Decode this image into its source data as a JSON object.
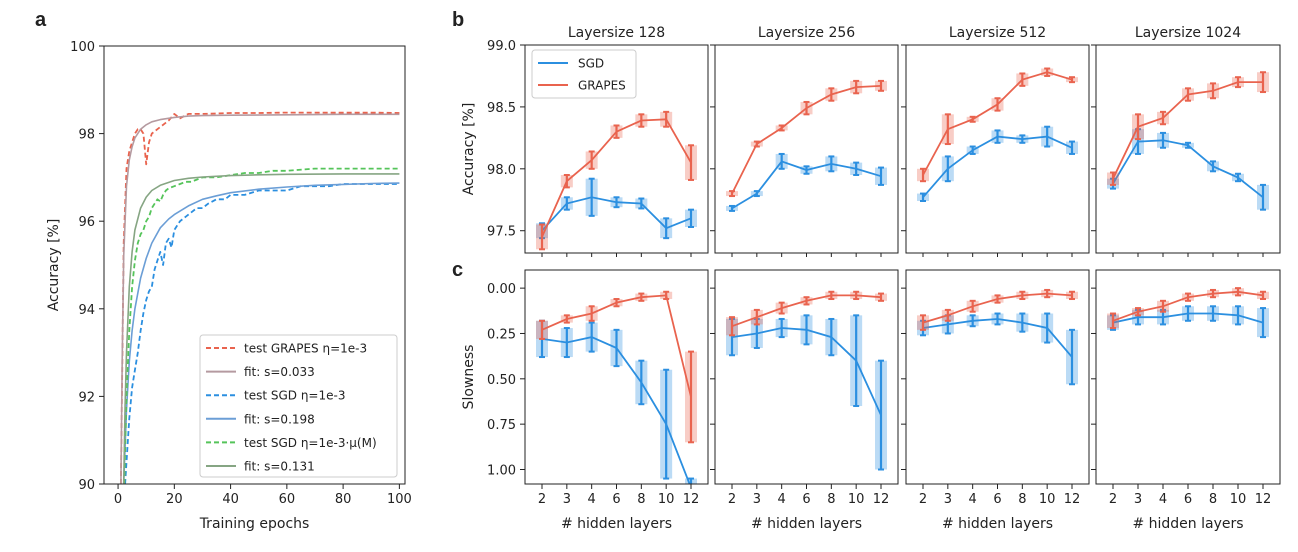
{
  "panel_letters": [
    "a",
    "b",
    "c"
  ],
  "colors": {
    "grapes": "#e9634e",
    "grapes_fit": "#b59aa0",
    "sgd": "#2b8fe0",
    "sgd_fit": "#6b9ed6",
    "sgd_mu": "#55c45a",
    "sgd_mu_fit": "#86a583"
  },
  "chart_data": [
    {
      "panel": "a",
      "type": "line",
      "xlabel": "Training epochs",
      "ylabel": "Accuracy [%]",
      "xlim": [
        -5,
        102
      ],
      "ylim": [
        90,
        100
      ],
      "xticks": [
        0,
        20,
        40,
        60,
        80,
        100
      ],
      "yticks": [
        90,
        92,
        94,
        96,
        98,
        100
      ],
      "legend_position": "lower right",
      "legend": [
        {
          "label": "test GRAPES η=1e-3",
          "style": "dashed",
          "series": "test_grapes"
        },
        {
          "label": "fit: s=0.033",
          "style": "solid",
          "series": "fit_grapes"
        },
        {
          "label": "test SGD η=1e-3",
          "style": "dashed",
          "series": "test_sgd"
        },
        {
          "label": "fit: s=0.198",
          "style": "solid",
          "series": "fit_sgd"
        },
        {
          "label": "test SGD η=1e-3·μ(M)",
          "style": "dashed",
          "series": "test_sgd_mu"
        },
        {
          "label": "fit: s=0.131",
          "style": "solid",
          "series": "fit_sgd_mu"
        }
      ],
      "series": [
        {
          "id": "test_grapes",
          "color": "#e9634e",
          "dashed": true,
          "x": [
            1,
            2,
            3,
            4,
            5,
            6,
            7,
            8,
            9,
            10,
            11,
            12,
            14,
            16,
            18,
            20,
            22,
            25,
            30,
            40,
            50,
            60,
            70,
            80,
            90,
            100
          ],
          "y": [
            90.0,
            95.5,
            97.2,
            97.6,
            97.8,
            98.0,
            98.1,
            98.1,
            98.0,
            97.3,
            97.8,
            98.0,
            98.1,
            98.2,
            98.3,
            98.45,
            98.35,
            98.45,
            98.45,
            98.47,
            98.47,
            98.48,
            98.48,
            98.48,
            98.48,
            98.47
          ]
        },
        {
          "id": "fit_grapes",
          "color": "#b59aa0",
          "dashed": false,
          "x": [
            1,
            1.5,
            2,
            3,
            4,
            5,
            6,
            8,
            10,
            12,
            15,
            20,
            25,
            30,
            40,
            60,
            80,
            100
          ],
          "y": [
            90.0,
            93.0,
            95.2,
            96.8,
            97.4,
            97.7,
            97.9,
            98.1,
            98.2,
            98.27,
            98.32,
            98.37,
            98.4,
            98.41,
            98.42,
            98.43,
            98.44,
            98.44
          ]
        },
        {
          "id": "test_sgd",
          "color": "#2b8fe0",
          "dashed": true,
          "x": [
            2.5,
            4,
            5,
            6,
            7,
            8,
            9,
            10,
            11,
            12,
            13,
            14,
            15,
            16,
            17,
            18,
            19,
            20,
            22,
            24,
            26,
            28,
            30,
            32,
            35,
            38,
            40,
            45,
            50,
            55,
            60,
            65,
            70,
            75,
            80,
            85,
            90,
            95,
            100
          ],
          "y": [
            90.0,
            91.5,
            92.2,
            92.6,
            93.0,
            93.5,
            93.9,
            94.2,
            94.4,
            94.5,
            94.9,
            95.1,
            95.3,
            95.0,
            95.5,
            95.6,
            95.4,
            95.8,
            96.0,
            96.1,
            96.2,
            96.3,
            96.3,
            96.4,
            96.5,
            96.5,
            96.6,
            96.6,
            96.7,
            96.7,
            96.7,
            96.8,
            96.8,
            96.8,
            96.85,
            96.85,
            96.85,
            96.85,
            96.85
          ]
        },
        {
          "id": "fit_sgd",
          "color": "#6b9ed6",
          "dashed": false,
          "x": [
            2,
            3,
            4,
            5,
            6,
            8,
            10,
            12,
            15,
            18,
            20,
            25,
            30,
            35,
            40,
            50,
            60,
            70,
            80,
            90,
            100
          ],
          "y": [
            90.0,
            91.7,
            92.8,
            93.5,
            94.0,
            94.7,
            95.15,
            95.5,
            95.85,
            96.05,
            96.15,
            96.35,
            96.5,
            96.58,
            96.65,
            96.73,
            96.78,
            96.82,
            96.84,
            96.86,
            96.87
          ]
        },
        {
          "id": "test_sgd_mu",
          "color": "#55c45a",
          "dashed": true,
          "x": [
            2.2,
            3,
            4,
            5,
            6,
            7,
            8,
            9,
            10,
            11,
            12,
            13,
            14,
            15,
            16,
            17,
            18,
            20,
            22,
            24,
            26,
            28,
            30,
            35,
            40,
            45,
            50,
            55,
            60,
            70,
            80,
            90,
            100
          ],
          "y": [
            90.0,
            92.0,
            93.5,
            94.5,
            95.1,
            95.5,
            95.7,
            95.8,
            96.0,
            96.1,
            96.3,
            96.4,
            96.5,
            96.45,
            96.6,
            96.7,
            96.75,
            96.8,
            96.85,
            96.9,
            96.9,
            96.95,
            97.0,
            97.0,
            97.05,
            97.1,
            97.1,
            97.15,
            97.15,
            97.2,
            97.2,
            97.2,
            97.2
          ]
        },
        {
          "id": "fit_sgd_mu",
          "color": "#86a583",
          "dashed": false,
          "x": [
            2,
            2.5,
            3,
            4,
            5,
            6,
            8,
            10,
            12,
            15,
            20,
            25,
            30,
            40,
            50,
            60,
            80,
            100
          ],
          "y": [
            90.0,
            91.8,
            93.0,
            94.5,
            95.3,
            95.8,
            96.3,
            96.55,
            96.7,
            96.82,
            96.93,
            96.98,
            97.01,
            97.04,
            97.06,
            97.07,
            97.08,
            97.08
          ]
        }
      ]
    },
    {
      "panel": "b",
      "type": "line",
      "ylabel": "Accuracy [%]",
      "ylim": [
        97.32,
        99.0
      ],
      "yticks": [
        97.5,
        98.0,
        98.5,
        99.0
      ],
      "x": [
        "2",
        "3",
        "4",
        "6",
        "8",
        "10",
        "12"
      ],
      "legend_position": "upper left",
      "legend": [
        {
          "label": "SGD",
          "series": "sgd"
        },
        {
          "label": "GRAPES",
          "series": "grapes"
        }
      ],
      "subplots": [
        {
          "title": "Layersize 128",
          "grapes": {
            "y": [
              97.45,
              97.9,
              98.07,
              98.3,
              98.39,
              98.4,
              98.05
            ],
            "err": [
              0.1,
              0.05,
              0.07,
              0.05,
              0.05,
              0.06,
              0.14
            ]
          },
          "sgd": {
            "y": [
              97.5,
              97.72,
              97.77,
              97.73,
              97.72,
              97.52,
              97.6
            ],
            "err": [
              0.06,
              0.05,
              0.15,
              0.04,
              0.04,
              0.08,
              0.07
            ]
          }
        },
        {
          "title": "Layersize 256",
          "grapes": {
            "y": [
              97.8,
              98.2,
              98.33,
              98.49,
              98.6,
              98.66,
              98.67
            ],
            "err": [
              0.02,
              0.02,
              0.02,
              0.05,
              0.05,
              0.05,
              0.04
            ]
          },
          "sgd": {
            "y": [
              97.68,
              97.8,
              98.06,
              97.99,
              98.04,
              98.0,
              97.94
            ],
            "err": [
              0.02,
              0.02,
              0.06,
              0.03,
              0.06,
              0.05,
              0.07
            ]
          }
        },
        {
          "title": "Layersize 512",
          "grapes": {
            "y": [
              97.95,
              98.32,
              98.4,
              98.52,
              98.72,
              98.78,
              98.72
            ],
            "err": [
              0.05,
              0.12,
              0.02,
              0.05,
              0.05,
              0.03,
              0.02
            ]
          },
          "sgd": {
            "y": [
              97.77,
              98.0,
              98.15,
              98.26,
              98.24,
              98.26,
              98.17
            ],
            "err": [
              0.03,
              0.1,
              0.03,
              0.05,
              0.03,
              0.08,
              0.05
            ]
          }
        },
        {
          "title": "Layersize 1024",
          "grapes": {
            "y": [
              97.92,
              98.34,
              98.41,
              98.6,
              98.63,
              98.7,
              98.7
            ],
            "err": [
              0.05,
              0.1,
              0.05,
              0.05,
              0.06,
              0.04,
              0.08
            ]
          },
          "sgd": {
            "y": [
              97.88,
              98.22,
              98.23,
              98.19,
              98.02,
              97.93,
              97.77
            ],
            "err": [
              0.04,
              0.1,
              0.06,
              0.02,
              0.04,
              0.03,
              0.1
            ]
          }
        }
      ]
    },
    {
      "panel": "c",
      "type": "line",
      "ylabel": "Slowness",
      "xlabel": "# hidden layers",
      "ylim": [
        1.08,
        -0.1
      ],
      "yticks": [
        0.0,
        0.25,
        0.5,
        0.75,
        1.0
      ],
      "x": [
        "2",
        "3",
        "4",
        "6",
        "8",
        "10",
        "12"
      ],
      "subplots": [
        {
          "grapes": {
            "y": [
              0.23,
              0.17,
              0.14,
              0.08,
              0.05,
              0.04,
              0.6
            ],
            "err": [
              0.05,
              0.02,
              0.04,
              0.02,
              0.02,
              0.02,
              0.25
            ]
          },
          "sgd": {
            "y": [
              0.28,
              0.3,
              0.27,
              0.33,
              0.52,
              0.75,
              1.1
            ],
            "err": [
              0.1,
              0.08,
              0.08,
              0.1,
              0.12,
              0.3,
              0.05
            ]
          }
        },
        {
          "grapes": {
            "y": [
              0.21,
              0.16,
              0.11,
              0.07,
              0.04,
              0.04,
              0.05
            ],
            "err": [
              0.05,
              0.04,
              0.03,
              0.02,
              0.02,
              0.02,
              0.02
            ]
          },
          "sgd": {
            "y": [
              0.27,
              0.25,
              0.22,
              0.23,
              0.27,
              0.4,
              0.7
            ],
            "err": [
              0.1,
              0.08,
              0.05,
              0.08,
              0.1,
              0.25,
              0.3
            ]
          }
        },
        {
          "grapes": {
            "y": [
              0.19,
              0.15,
              0.1,
              0.06,
              0.04,
              0.03,
              0.04
            ],
            "err": [
              0.04,
              0.03,
              0.03,
              0.02,
              0.02,
              0.02,
              0.02
            ]
          },
          "sgd": {
            "y": [
              0.22,
              0.2,
              0.18,
              0.17,
              0.19,
              0.22,
              0.38
            ],
            "err": [
              0.04,
              0.05,
              0.03,
              0.03,
              0.05,
              0.08,
              0.15
            ]
          }
        },
        {
          "grapes": {
            "y": [
              0.18,
              0.13,
              0.1,
              0.05,
              0.03,
              0.02,
              0.04
            ],
            "err": [
              0.04,
              0.02,
              0.03,
              0.02,
              0.02,
              0.02,
              0.02
            ]
          },
          "sgd": {
            "y": [
              0.19,
              0.16,
              0.16,
              0.14,
              0.14,
              0.15,
              0.19
            ],
            "err": [
              0.04,
              0.04,
              0.04,
              0.04,
              0.04,
              0.05,
              0.08
            ]
          }
        }
      ]
    }
  ]
}
